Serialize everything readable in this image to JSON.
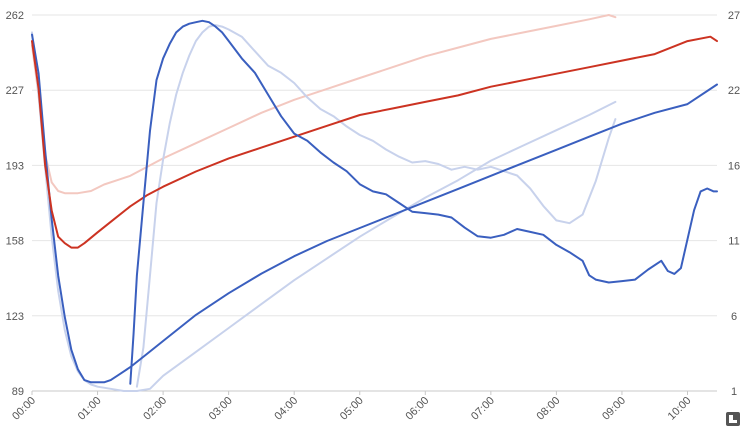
{
  "chart_data": {
    "type": "line",
    "title": "",
    "xlabel": "",
    "ylabel_left": "",
    "ylabel_right": "",
    "x_ticks": [
      "00:00",
      "01:00",
      "02:00",
      "03:00",
      "04:00",
      "05:00",
      "06:00",
      "07:00",
      "08:00",
      "09:00",
      "10:00"
    ],
    "x_range_hours": [
      0,
      10.45
    ],
    "y_left_ticks": [
      "89",
      "123",
      "158",
      "193",
      "227",
      "262"
    ],
    "y_left_range": [
      89,
      262
    ],
    "y_right_ticks": [
      "1",
      "6",
      "11",
      "16",
      "22",
      "27"
    ],
    "y_right_range": [
      1,
      27
    ],
    "grid": true,
    "legend": "none",
    "series": [
      {
        "axis": "left",
        "color": "#3a5fbf",
        "points": [
          [
            0,
            253
          ],
          [
            0.1,
            235
          ],
          [
            0.2,
            200
          ],
          [
            0.3,
            168
          ],
          [
            0.4,
            142
          ],
          [
            0.5,
            123
          ],
          [
            0.6,
            108
          ],
          [
            0.7,
            99
          ],
          [
            0.8,
            94
          ],
          [
            0.9,
            93
          ],
          [
            1.0,
            93
          ],
          [
            1.1,
            93
          ],
          [
            1.2,
            94
          ],
          [
            1.3,
            96
          ],
          [
            1.4,
            98
          ],
          [
            1.5,
            100
          ],
          [
            1.75,
            106
          ],
          [
            2.0,
            112
          ],
          [
            2.5,
            124
          ],
          [
            3.0,
            134
          ],
          [
            3.5,
            143
          ],
          [
            4.0,
            151
          ],
          [
            4.5,
            158
          ],
          [
            5.0,
            164
          ],
          [
            5.5,
            170
          ],
          [
            6.0,
            176
          ],
          [
            6.5,
            182
          ],
          [
            7.0,
            188
          ],
          [
            7.5,
            194
          ],
          [
            8.0,
            200
          ],
          [
            8.5,
            206
          ],
          [
            9.0,
            212
          ],
          [
            9.5,
            217
          ],
          [
            10.0,
            221
          ],
          [
            10.45,
            230
          ]
        ]
      },
      {
        "axis": "left",
        "color": "#cc3322",
        "points": [
          [
            0,
            250
          ],
          [
            0.1,
            228
          ],
          [
            0.2,
            193
          ],
          [
            0.3,
            172
          ],
          [
            0.4,
            160
          ],
          [
            0.5,
            157
          ],
          [
            0.6,
            155
          ],
          [
            0.7,
            155
          ],
          [
            0.8,
            157
          ],
          [
            1.0,
            162
          ],
          [
            1.25,
            168
          ],
          [
            1.5,
            174
          ],
          [
            1.75,
            179
          ],
          [
            2.0,
            183
          ],
          [
            2.5,
            190
          ],
          [
            3.0,
            196
          ],
          [
            3.5,
            201
          ],
          [
            4.0,
            206
          ],
          [
            4.5,
            211
          ],
          [
            5.0,
            216
          ],
          [
            5.5,
            219
          ],
          [
            6.0,
            222
          ],
          [
            6.5,
            225
          ],
          [
            7.0,
            229
          ],
          [
            7.5,
            232
          ],
          [
            8.0,
            235
          ],
          [
            8.5,
            238
          ],
          [
            9.0,
            241
          ],
          [
            9.5,
            244
          ],
          [
            10.0,
            250
          ],
          [
            10.35,
            252
          ],
          [
            10.45,
            250
          ]
        ]
      },
      {
        "axis": "left",
        "color": "#f3c8c0",
        "points": [
          [
            0,
            248
          ],
          [
            0.1,
            225
          ],
          [
            0.2,
            198
          ],
          [
            0.3,
            185
          ],
          [
            0.4,
            181
          ],
          [
            0.5,
            180
          ],
          [
            0.7,
            180
          ],
          [
            0.9,
            181
          ],
          [
            1.1,
            184
          ],
          [
            1.3,
            186
          ],
          [
            1.5,
            188
          ],
          [
            2.0,
            196
          ],
          [
            2.5,
            203
          ],
          [
            3.0,
            210
          ],
          [
            3.5,
            217
          ],
          [
            4.0,
            223
          ],
          [
            4.5,
            228
          ],
          [
            5.0,
            233
          ],
          [
            5.5,
            238
          ],
          [
            6.0,
            243
          ],
          [
            6.5,
            247
          ],
          [
            7.0,
            251
          ],
          [
            7.5,
            254
          ],
          [
            8.0,
            257
          ],
          [
            8.5,
            260
          ],
          [
            8.8,
            262
          ],
          [
            8.9,
            261
          ]
        ]
      },
      {
        "axis": "left",
        "color": "#c8d2ec",
        "points": [
          [
            0,
            254
          ],
          [
            0.1,
            225
          ],
          [
            0.2,
            192
          ],
          [
            0.3,
            160
          ],
          [
            0.4,
            135
          ],
          [
            0.5,
            117
          ],
          [
            0.6,
            105
          ],
          [
            0.7,
            98
          ],
          [
            0.8,
            94
          ],
          [
            0.9,
            92
          ],
          [
            1.0,
            91
          ],
          [
            1.2,
            90
          ],
          [
            1.4,
            89
          ],
          [
            1.6,
            89
          ],
          [
            1.8,
            90
          ],
          [
            2.0,
            96
          ],
          [
            2.5,
            107
          ],
          [
            3.0,
            118
          ],
          [
            3.5,
            129
          ],
          [
            4.0,
            140
          ],
          [
            4.5,
            150
          ],
          [
            5.0,
            160
          ],
          [
            5.5,
            169
          ],
          [
            6.0,
            178
          ],
          [
            6.5,
            186
          ],
          [
            7.0,
            195
          ],
          [
            7.5,
            202
          ],
          [
            8.0,
            209
          ],
          [
            8.5,
            216
          ],
          [
            8.9,
            222
          ]
        ]
      },
      {
        "axis": "right",
        "color": "#3a5fbf",
        "points": [
          [
            1.5,
            1.5
          ],
          [
            1.55,
            5
          ],
          [
            1.6,
            9
          ],
          [
            1.7,
            14
          ],
          [
            1.8,
            19
          ],
          [
            1.9,
            22.5
          ],
          [
            2.0,
            24
          ],
          [
            2.1,
            25
          ],
          [
            2.2,
            25.8
          ],
          [
            2.3,
            26.2
          ],
          [
            2.4,
            26.4
          ],
          [
            2.5,
            26.5
          ],
          [
            2.6,
            26.6
          ],
          [
            2.7,
            26.5
          ],
          [
            2.8,
            26.2
          ],
          [
            2.9,
            25.8
          ],
          [
            3.0,
            25.2
          ],
          [
            3.2,
            24.0
          ],
          [
            3.4,
            23.0
          ],
          [
            3.6,
            21.5
          ],
          [
            3.8,
            20.0
          ],
          [
            4.0,
            18.8
          ],
          [
            4.2,
            18.3
          ],
          [
            4.4,
            17.5
          ],
          [
            4.6,
            16.8
          ],
          [
            4.8,
            16.2
          ],
          [
            5.0,
            15.3
          ],
          [
            5.2,
            14.8
          ],
          [
            5.4,
            14.6
          ],
          [
            5.6,
            14.0
          ],
          [
            5.8,
            13.4
          ],
          [
            6.0,
            13.3
          ],
          [
            6.2,
            13.2
          ],
          [
            6.4,
            13.0
          ],
          [
            6.6,
            12.3
          ],
          [
            6.8,
            11.7
          ],
          [
            7.0,
            11.6
          ],
          [
            7.2,
            11.8
          ],
          [
            7.4,
            12.2
          ],
          [
            7.6,
            12.0
          ],
          [
            7.8,
            11.8
          ],
          [
            8.0,
            11.1
          ],
          [
            8.2,
            10.6
          ],
          [
            8.4,
            10.0
          ],
          [
            8.5,
            9.0
          ],
          [
            8.6,
            8.7
          ],
          [
            8.8,
            8.5
          ],
          [
            9.0,
            8.6
          ],
          [
            9.2,
            8.7
          ],
          [
            9.4,
            9.4
          ],
          [
            9.6,
            10.0
          ],
          [
            9.7,
            9.3
          ],
          [
            9.8,
            9.1
          ],
          [
            9.9,
            9.5
          ],
          [
            10.0,
            11.5
          ],
          [
            10.1,
            13.5
          ],
          [
            10.2,
            14.8
          ],
          [
            10.3,
            15.0
          ],
          [
            10.4,
            14.8
          ],
          [
            10.45,
            14.8
          ]
        ]
      },
      {
        "axis": "right",
        "color": "#c8d2ec",
        "points": [
          [
            1.6,
            1.3
          ],
          [
            1.7,
            4
          ],
          [
            1.8,
            9
          ],
          [
            1.9,
            14
          ],
          [
            2.0,
            17
          ],
          [
            2.1,
            19.5
          ],
          [
            2.2,
            21.5
          ],
          [
            2.3,
            23.0
          ],
          [
            2.4,
            24.2
          ],
          [
            2.5,
            25.2
          ],
          [
            2.6,
            25.8
          ],
          [
            2.7,
            26.2
          ],
          [
            2.8,
            26.3
          ],
          [
            2.9,
            26.2
          ],
          [
            3.0,
            26.0
          ],
          [
            3.2,
            25.5
          ],
          [
            3.4,
            24.5
          ],
          [
            3.6,
            23.5
          ],
          [
            3.8,
            23.0
          ],
          [
            4.0,
            22.3
          ],
          [
            4.2,
            21.3
          ],
          [
            4.4,
            20.5
          ],
          [
            4.6,
            20.0
          ],
          [
            4.8,
            19.3
          ],
          [
            5.0,
            18.7
          ],
          [
            5.2,
            18.3
          ],
          [
            5.4,
            17.7
          ],
          [
            5.6,
            17.2
          ],
          [
            5.8,
            16.8
          ],
          [
            6.0,
            16.9
          ],
          [
            6.2,
            16.7
          ],
          [
            6.4,
            16.3
          ],
          [
            6.6,
            16.5
          ],
          [
            6.8,
            16.3
          ],
          [
            7.0,
            16.5
          ],
          [
            7.2,
            16.2
          ],
          [
            7.4,
            15.9
          ],
          [
            7.6,
            15.0
          ],
          [
            7.8,
            13.8
          ],
          [
            8.0,
            12.8
          ],
          [
            8.2,
            12.6
          ],
          [
            8.4,
            13.2
          ],
          [
            8.6,
            15.5
          ],
          [
            8.8,
            18.5
          ],
          [
            8.9,
            19.8
          ]
        ]
      }
    ]
  },
  "badge": {
    "icon": "corner-logo-icon"
  }
}
